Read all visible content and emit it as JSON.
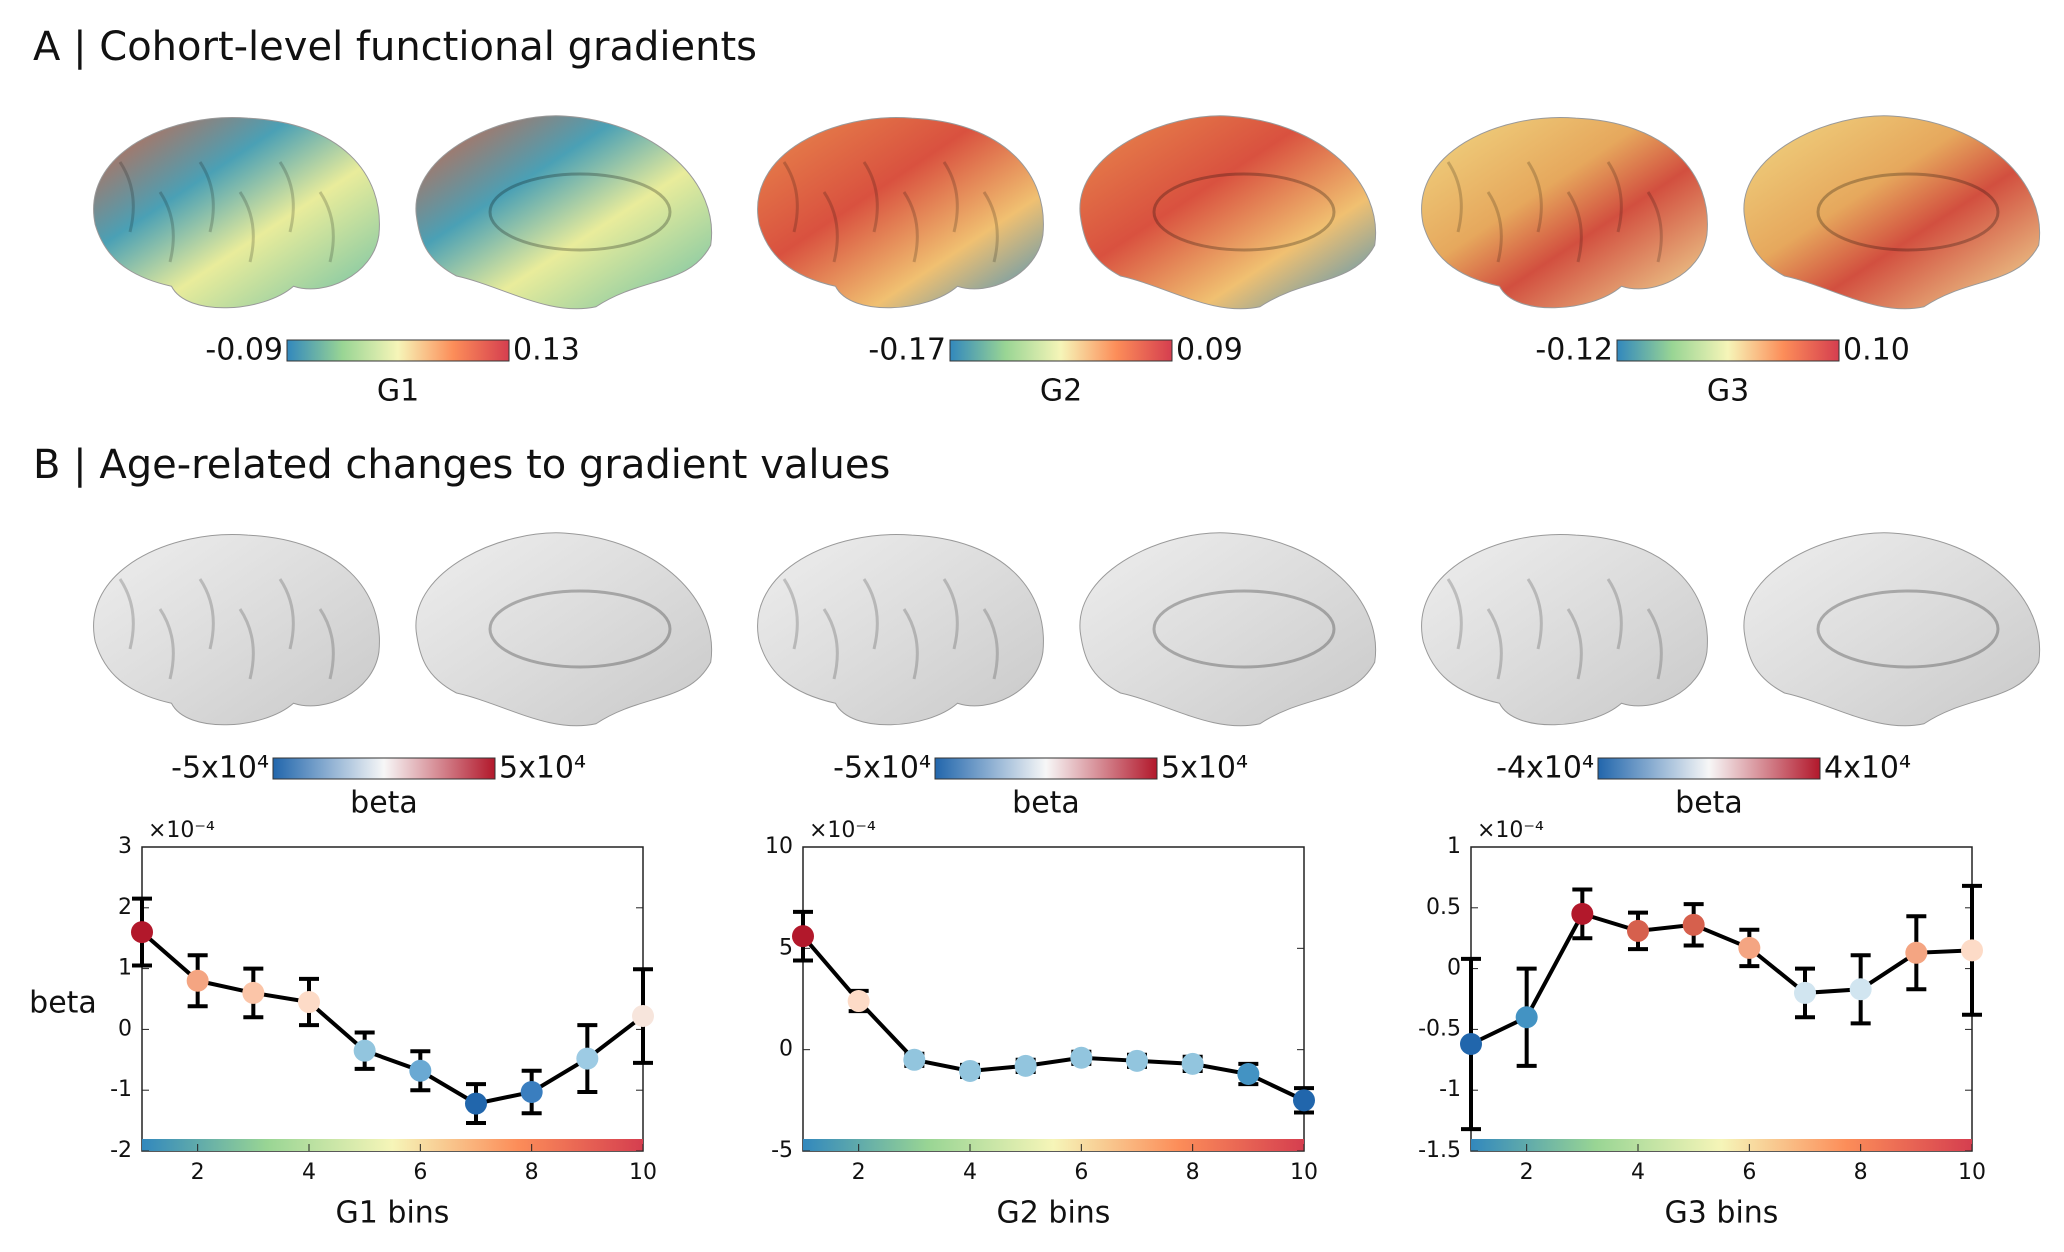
{
  "panel_a": {
    "title": "A | Cohort-level functional gradients",
    "colorbars": [
      {
        "min": "-0.09",
        "max": "0.13",
        "label": "G1"
      },
      {
        "min": "-0.17",
        "max": "0.09",
        "label": "G2"
      },
      {
        "min": "-0.12",
        "max": "0.10",
        "label": "G3"
      }
    ]
  },
  "panel_b": {
    "title": "B | Age-related changes to gradient values",
    "colorbars": [
      {
        "min": "-5x10⁴",
        "max": "5x10⁴",
        "label": "beta"
      },
      {
        "min": "-5x10⁴",
        "max": "5x10⁴",
        "label": "beta"
      },
      {
        "min": "-4x10⁴",
        "max": "4x10⁴",
        "label": "beta"
      }
    ]
  },
  "chart_data": [
    {
      "type": "line",
      "xlabel": "G1 bins",
      "ylabel": "beta",
      "scale_label": "×10⁻⁴",
      "line_color": "#000000",
      "x": [
        1,
        2,
        3,
        4,
        5,
        6,
        7,
        8,
        9,
        10
      ],
      "values": [
        1.6,
        0.8,
        0.6,
        0.45,
        -0.35,
        -0.68,
        -1.22,
        -1.03,
        -0.48,
        0.22
      ],
      "errors": [
        0.55,
        0.42,
        0.4,
        0.38,
        0.3,
        0.32,
        0.32,
        0.35,
        0.55,
        0.77
      ],
      "point_colors": [
        "#b2182b",
        "#f4a582",
        "#fbc5a8",
        "#fddbc7",
        "#92c5de",
        "#6aa9d3",
        "#2166ac",
        "#3a7ebf",
        "#9dcbe4",
        "#f7e5dc"
      ],
      "xlim": [
        1,
        10
      ],
      "xticks": [
        2,
        4,
        6,
        8,
        10
      ],
      "ylim": [
        -2,
        3
      ],
      "yticks": [
        -2,
        -1,
        0,
        1,
        2,
        3
      ]
    },
    {
      "type": "line",
      "xlabel": "G2 bins",
      "scale_label": "×10⁻⁴",
      "line_color": "#000000",
      "x": [
        1,
        2,
        3,
        4,
        5,
        6,
        7,
        8,
        9,
        10
      ],
      "values": [
        5.6,
        2.4,
        -0.5,
        -1.05,
        -0.8,
        -0.4,
        -0.55,
        -0.7,
        -1.2,
        -2.5
      ],
      "errors": [
        1.2,
        0.5,
        0.3,
        0.3,
        0.3,
        0.3,
        0.3,
        0.35,
        0.5,
        0.6
      ],
      "point_colors": [
        "#b2182b",
        "#fddbc7",
        "#92c5de",
        "#92c5de",
        "#92c5de",
        "#92c5de",
        "#92c5de",
        "#92c5de",
        "#4393c3",
        "#2166ac"
      ],
      "xlim": [
        1,
        10
      ],
      "xticks": [
        2,
        4,
        6,
        8,
        10
      ],
      "ylim": [
        -5,
        10
      ],
      "yticks": [
        -5,
        0,
        5,
        10
      ]
    },
    {
      "type": "line",
      "xlabel": "G3 bins",
      "scale_label": "×10⁻⁴",
      "line_color": "#000000",
      "x": [
        1,
        2,
        3,
        4,
        5,
        6,
        7,
        8,
        9,
        10
      ],
      "values": [
        -0.62,
        -0.4,
        0.45,
        0.31,
        0.36,
        0.17,
        -0.2,
        -0.17,
        0.13,
        0.15
      ],
      "errors": [
        0.7,
        0.4,
        0.2,
        0.15,
        0.17,
        0.15,
        0.2,
        0.28,
        0.3,
        0.53
      ],
      "point_colors": [
        "#2166ac",
        "#4393c3",
        "#b2182b",
        "#d6604d",
        "#d6604d",
        "#f4a582",
        "#d1e5f0",
        "#d1e5f0",
        "#f4a582",
        "#fddbc7"
      ],
      "xlim": [
        1,
        10
      ],
      "xticks": [
        2,
        4,
        6,
        8,
        10
      ],
      "ylim": [
        -1.5,
        1
      ],
      "yticks": [
        -1.5,
        -1,
        -0.5,
        0,
        0.5,
        1
      ]
    }
  ]
}
